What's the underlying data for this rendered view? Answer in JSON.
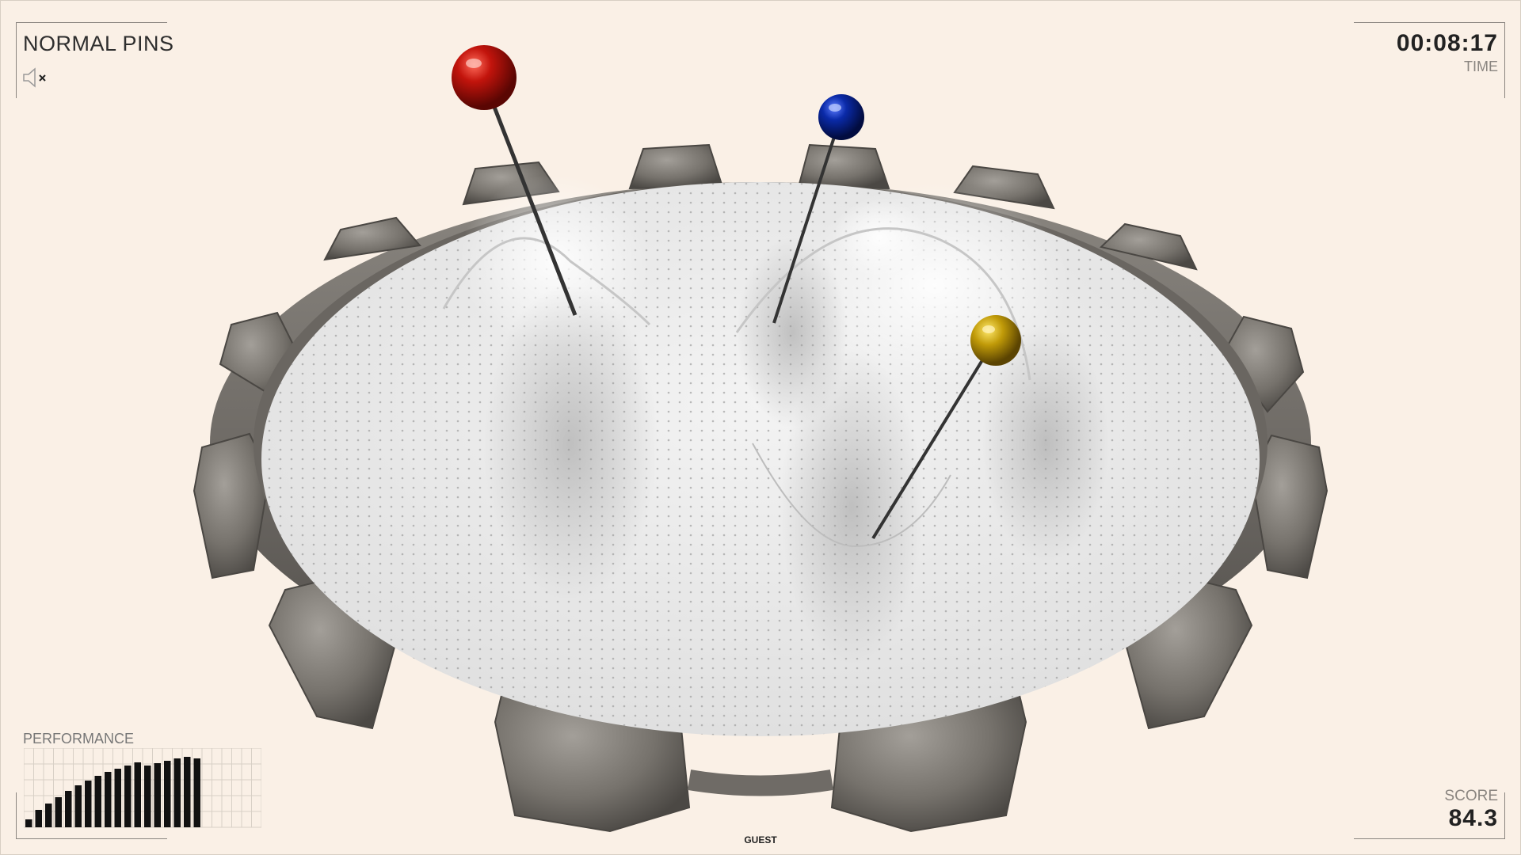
{
  "game": {
    "title": "NORMAL PINS",
    "timer": "00:08:17",
    "timer_label": "TIME",
    "score_label": "SCORE",
    "score": "84.3",
    "performance_label": "PERFORMANCE",
    "performance_bars": [
      0.1,
      0.22,
      0.3,
      0.38,
      0.46,
      0.53,
      0.59,
      0.65,
      0.7,
      0.74,
      0.78,
      0.82,
      0.78,
      0.81,
      0.84,
      0.87,
      0.89,
      0.87
    ],
    "player": "GUEST",
    "sound": "muted",
    "pins": [
      {
        "name": "red-pin",
        "color": "#c2140c"
      },
      {
        "name": "blue-pin",
        "color": "#0a2aa8"
      },
      {
        "name": "gold-pin",
        "color": "#c09a08"
      }
    ]
  }
}
